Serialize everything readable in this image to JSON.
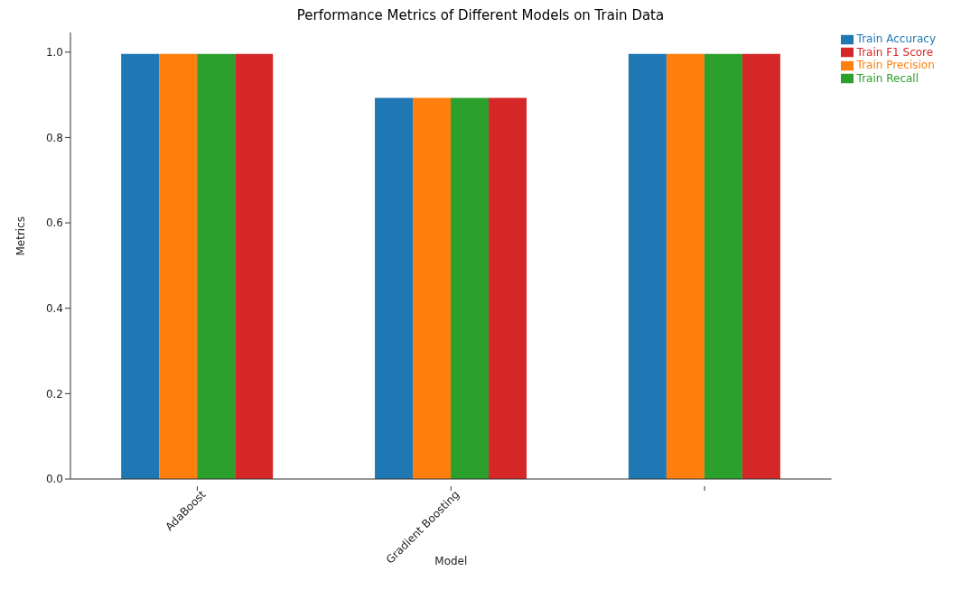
{
  "chart_data": {
    "type": "bar",
    "title": "Performance Metrics of Different Models on Train Data",
    "xlabel": "Model",
    "ylabel": "Metrics",
    "categories": [
      "AdaBoost",
      "Gradient Boosting",
      null
    ],
    "series": [
      {
        "name": "Train Accuracy",
        "color": "#1f77b4",
        "values": [
          0.996,
          0.893,
          0.996
        ]
      },
      {
        "name": "Train Precision",
        "color": "#ff7f0e",
        "values": [
          0.996,
          0.893,
          0.996
        ]
      },
      {
        "name": "Train Recall",
        "color": "#2ca02c",
        "values": [
          0.996,
          0.893,
          0.996
        ]
      },
      {
        "name": "Train F1 Score",
        "color": "#d62728",
        "values": [
          0.996,
          0.893,
          0.996
        ]
      }
    ],
    "ylim": [
      0,
      1.046
    ],
    "yticks": [
      {
        "value": 0,
        "label": "0.0"
      },
      {
        "value": 0.2,
        "label": "0.2"
      },
      {
        "value": 0.4,
        "label": "0.4"
      },
      {
        "value": 0.6,
        "label": "0.6"
      },
      {
        "value": 0.8,
        "label": "0.8"
      },
      {
        "value": 1,
        "label": "1.0"
      }
    ],
    "grid": false,
    "legend": "right"
  }
}
